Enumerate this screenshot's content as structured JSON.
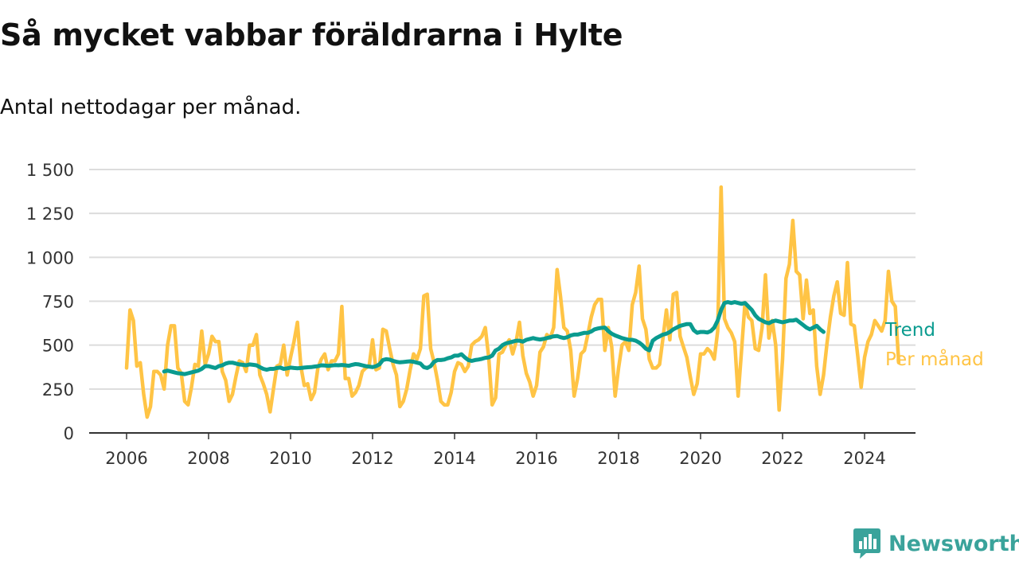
{
  "title": "Så mycket vabbar föräldrarna i Hylte",
  "subtitle": "Antal nettodagar per månad.",
  "brand": "Newsworthy",
  "chart_data": {
    "type": "line",
    "x_start": "2006-01",
    "x_step": "month",
    "xticks": [
      "2006",
      "2008",
      "2010",
      "2012",
      "2014",
      "2016",
      "2018",
      "2020",
      "2022",
      "2024"
    ],
    "yticks": [
      "0",
      "250",
      "500",
      "750",
      "1 000",
      "1 250",
      "1 500"
    ],
    "ylim": [
      0,
      1500
    ],
    "grid": true,
    "legend": "inline-right",
    "series": [
      {
        "name": "Per månad",
        "color": "#ffc445",
        "values": [
          370,
          700,
          640,
          380,
          400,
          220,
          90,
          150,
          350,
          350,
          330,
          250,
          500,
          610,
          610,
          370,
          340,
          180,
          160,
          260,
          390,
          380,
          580,
          390,
          450,
          550,
          520,
          520,
          350,
          300,
          180,
          220,
          320,
          410,
          400,
          350,
          500,
          500,
          560,
          330,
          280,
          220,
          120,
          250,
          380,
          390,
          500,
          330,
          430,
          520,
          630,
          380,
          270,
          280,
          190,
          230,
          370,
          420,
          450,
          360,
          410,
          410,
          450,
          720,
          310,
          310,
          210,
          230,
          270,
          350,
          370,
          380,
          530,
          360,
          370,
          590,
          580,
          480,
          390,
          330,
          150,
          180,
          250,
          360,
          450,
          420,
          480,
          780,
          790,
          480,
          400,
          300,
          180,
          160,
          160,
          230,
          350,
          400,
          390,
          350,
          380,
          500,
          520,
          530,
          550,
          600,
          430,
          160,
          200,
          450,
          460,
          500,
          530,
          450,
          520,
          630,
          440,
          340,
          290,
          210,
          270,
          460,
          490,
          560,
          540,
          600,
          930,
          780,
          600,
          580,
          470,
          210,
          310,
          450,
          470,
          560,
          660,
          730,
          760,
          760,
          470,
          600,
          490,
          210,
          370,
          500,
          520,
          470,
          730,
          800,
          950,
          650,
          590,
          420,
          370,
          370,
          390,
          540,
          700,
          530,
          790,
          800,
          550,
          490,
          430,
          320,
          220,
          280,
          450,
          450,
          480,
          460,
          420,
          580,
          1400,
          650,
          600,
          570,
          520,
          210,
          470,
          740,
          660,
          640,
          480,
          470,
          600,
          900,
          540,
          640,
          500,
          130,
          420,
          880,
          960,
          1210,
          920,
          900,
          650,
          870,
          680,
          700,
          380,
          220,
          330,
          510,
          660,
          780,
          860,
          680,
          670,
          970,
          620,
          610,
          440,
          260,
          430,
          520,
          560,
          640,
          610,
          580,
          640,
          920,
          750,
          720,
          400
        ]
      },
      {
        "name": "Trend",
        "color": "#0a9b8f",
        "start": "2006-12",
        "values": [
          350,
          355,
          350,
          345,
          340,
          338,
          335,
          340,
          345,
          350,
          355,
          365,
          380,
          380,
          375,
          370,
          380,
          385,
          395,
          400,
          400,
          395,
          390,
          388,
          385,
          390,
          388,
          385,
          375,
          365,
          360,
          365,
          365,
          370,
          372,
          365,
          368,
          372,
          370,
          368,
          370,
          372,
          374,
          375,
          378,
          380,
          385,
          384,
          382,
          384,
          386,
          385,
          387,
          385,
          382,
          388,
          392,
          390,
          385,
          380,
          378,
          375,
          380,
          390,
          415,
          420,
          418,
          410,
          405,
          402,
          404,
          406,
          408,
          405,
          400,
          395,
          375,
          370,
          380,
          405,
          415,
          415,
          418,
          425,
          430,
          440,
          440,
          448,
          430,
          415,
          410,
          415,
          418,
          422,
          428,
          430,
          440,
          470,
          480,
          500,
          510,
          515,
          520,
          525,
          525,
          520,
          530,
          535,
          540,
          535,
          532,
          535,
          540,
          545,
          550,
          552,
          545,
          540,
          545,
          555,
          560,
          560,
          565,
          570,
          570,
          578,
          590,
          595,
          598,
          600,
          580,
          565,
          555,
          548,
          540,
          535,
          530,
          530,
          525,
          515,
          500,
          480,
          470,
          525,
          540,
          550,
          560,
          565,
          575,
          590,
          600,
          610,
          615,
          620,
          620,
          585,
          570,
          575,
          575,
          572,
          580,
          600,
          640,
          700,
          740,
          745,
          740,
          745,
          740,
          735,
          740,
          720,
          700,
          670,
          650,
          640,
          630,
          625,
          635,
          640,
          635,
          630,
          635,
          640,
          640,
          645,
          630,
          615,
          600,
          590,
          600,
          610,
          590,
          575
        ]
      }
    ]
  }
}
